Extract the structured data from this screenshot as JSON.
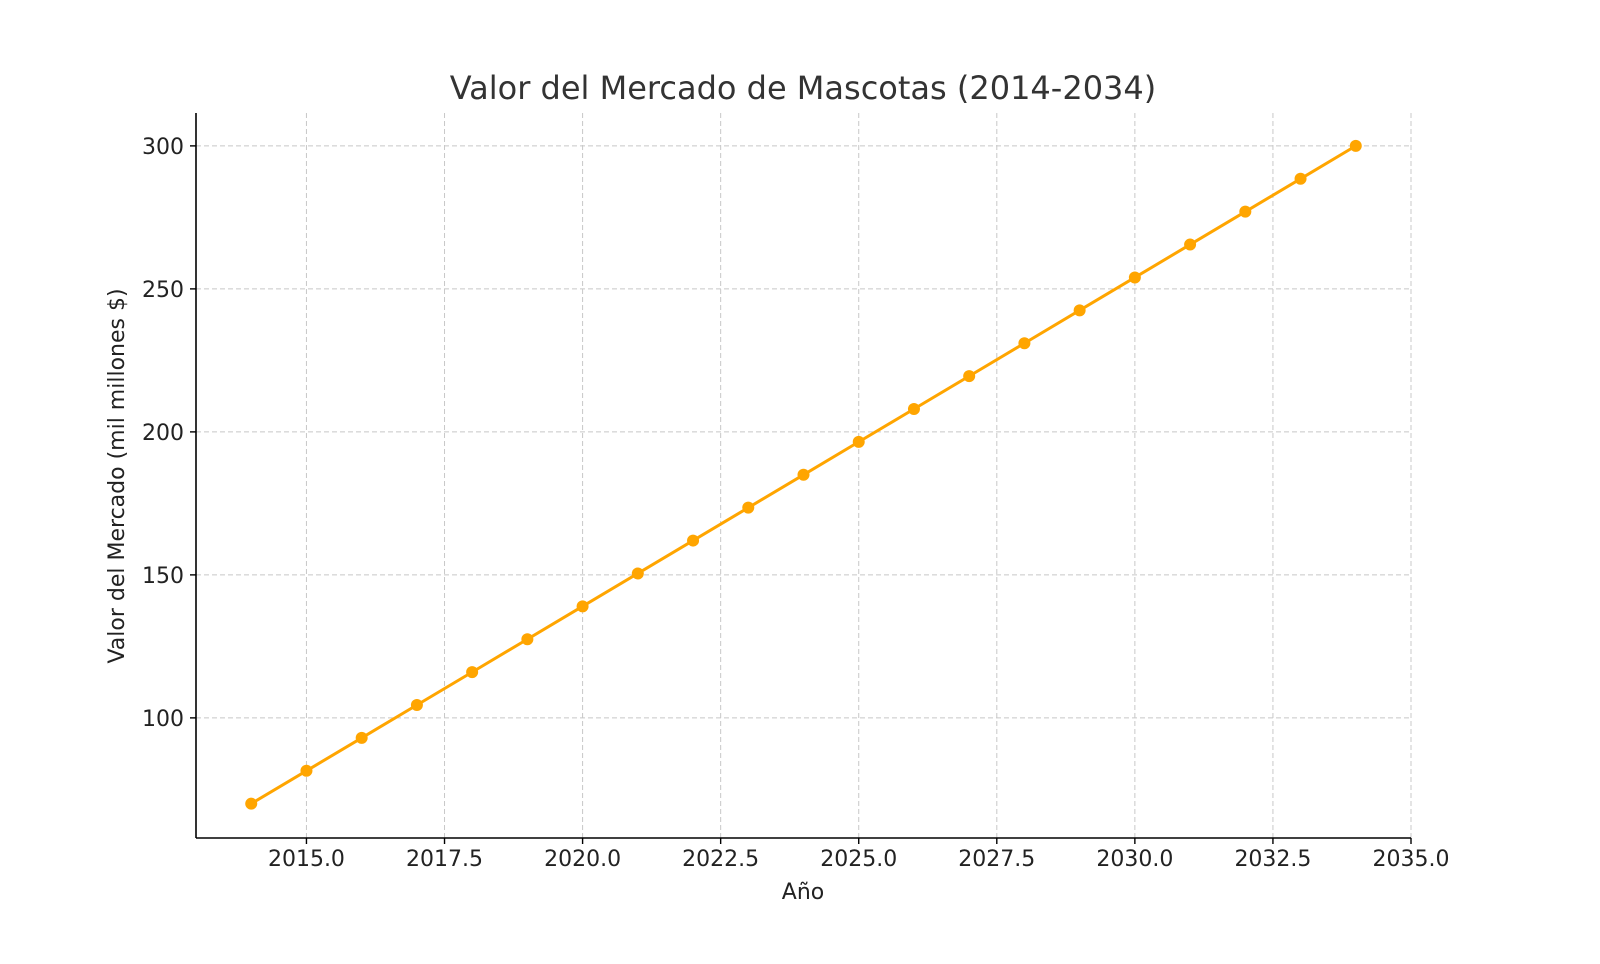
{
  "chart_data": {
    "type": "line",
    "title": "Valor del Mercado de Mascotas (2014-2034)",
    "xlabel": "Año",
    "ylabel": "Valor del Mercado (mil millones $)",
    "xlim": [
      2013.0,
      2035.0
    ],
    "ylim": [
      58,
      311.5
    ],
    "xticks": [
      2015.0,
      2017.5,
      2020.0,
      2022.5,
      2025.0,
      2027.5,
      2030.0,
      2032.5,
      2035.0
    ],
    "xtick_labels": [
      "2015.0",
      "2017.5",
      "2020.0",
      "2022.5",
      "2025.0",
      "2027.5",
      "2030.0",
      "2032.5",
      "2035.0"
    ],
    "yticks": [
      100,
      150,
      200,
      250,
      300
    ],
    "ytick_labels": [
      "100",
      "150",
      "200",
      "250",
      "300"
    ],
    "grid": true,
    "color": "#FFA500",
    "x": [
      2014,
      2015,
      2016,
      2017,
      2018,
      2019,
      2020,
      2021,
      2022,
      2023,
      2024,
      2025,
      2026,
      2027,
      2028,
      2029,
      2030,
      2031,
      2032,
      2033,
      2034
    ],
    "values": [
      70,
      81.5,
      93,
      104.5,
      116,
      127.5,
      139,
      150.5,
      162,
      173.5,
      185,
      196.5,
      208,
      219.5,
      231,
      242.5,
      254,
      265.5,
      277,
      288.5,
      300
    ]
  }
}
